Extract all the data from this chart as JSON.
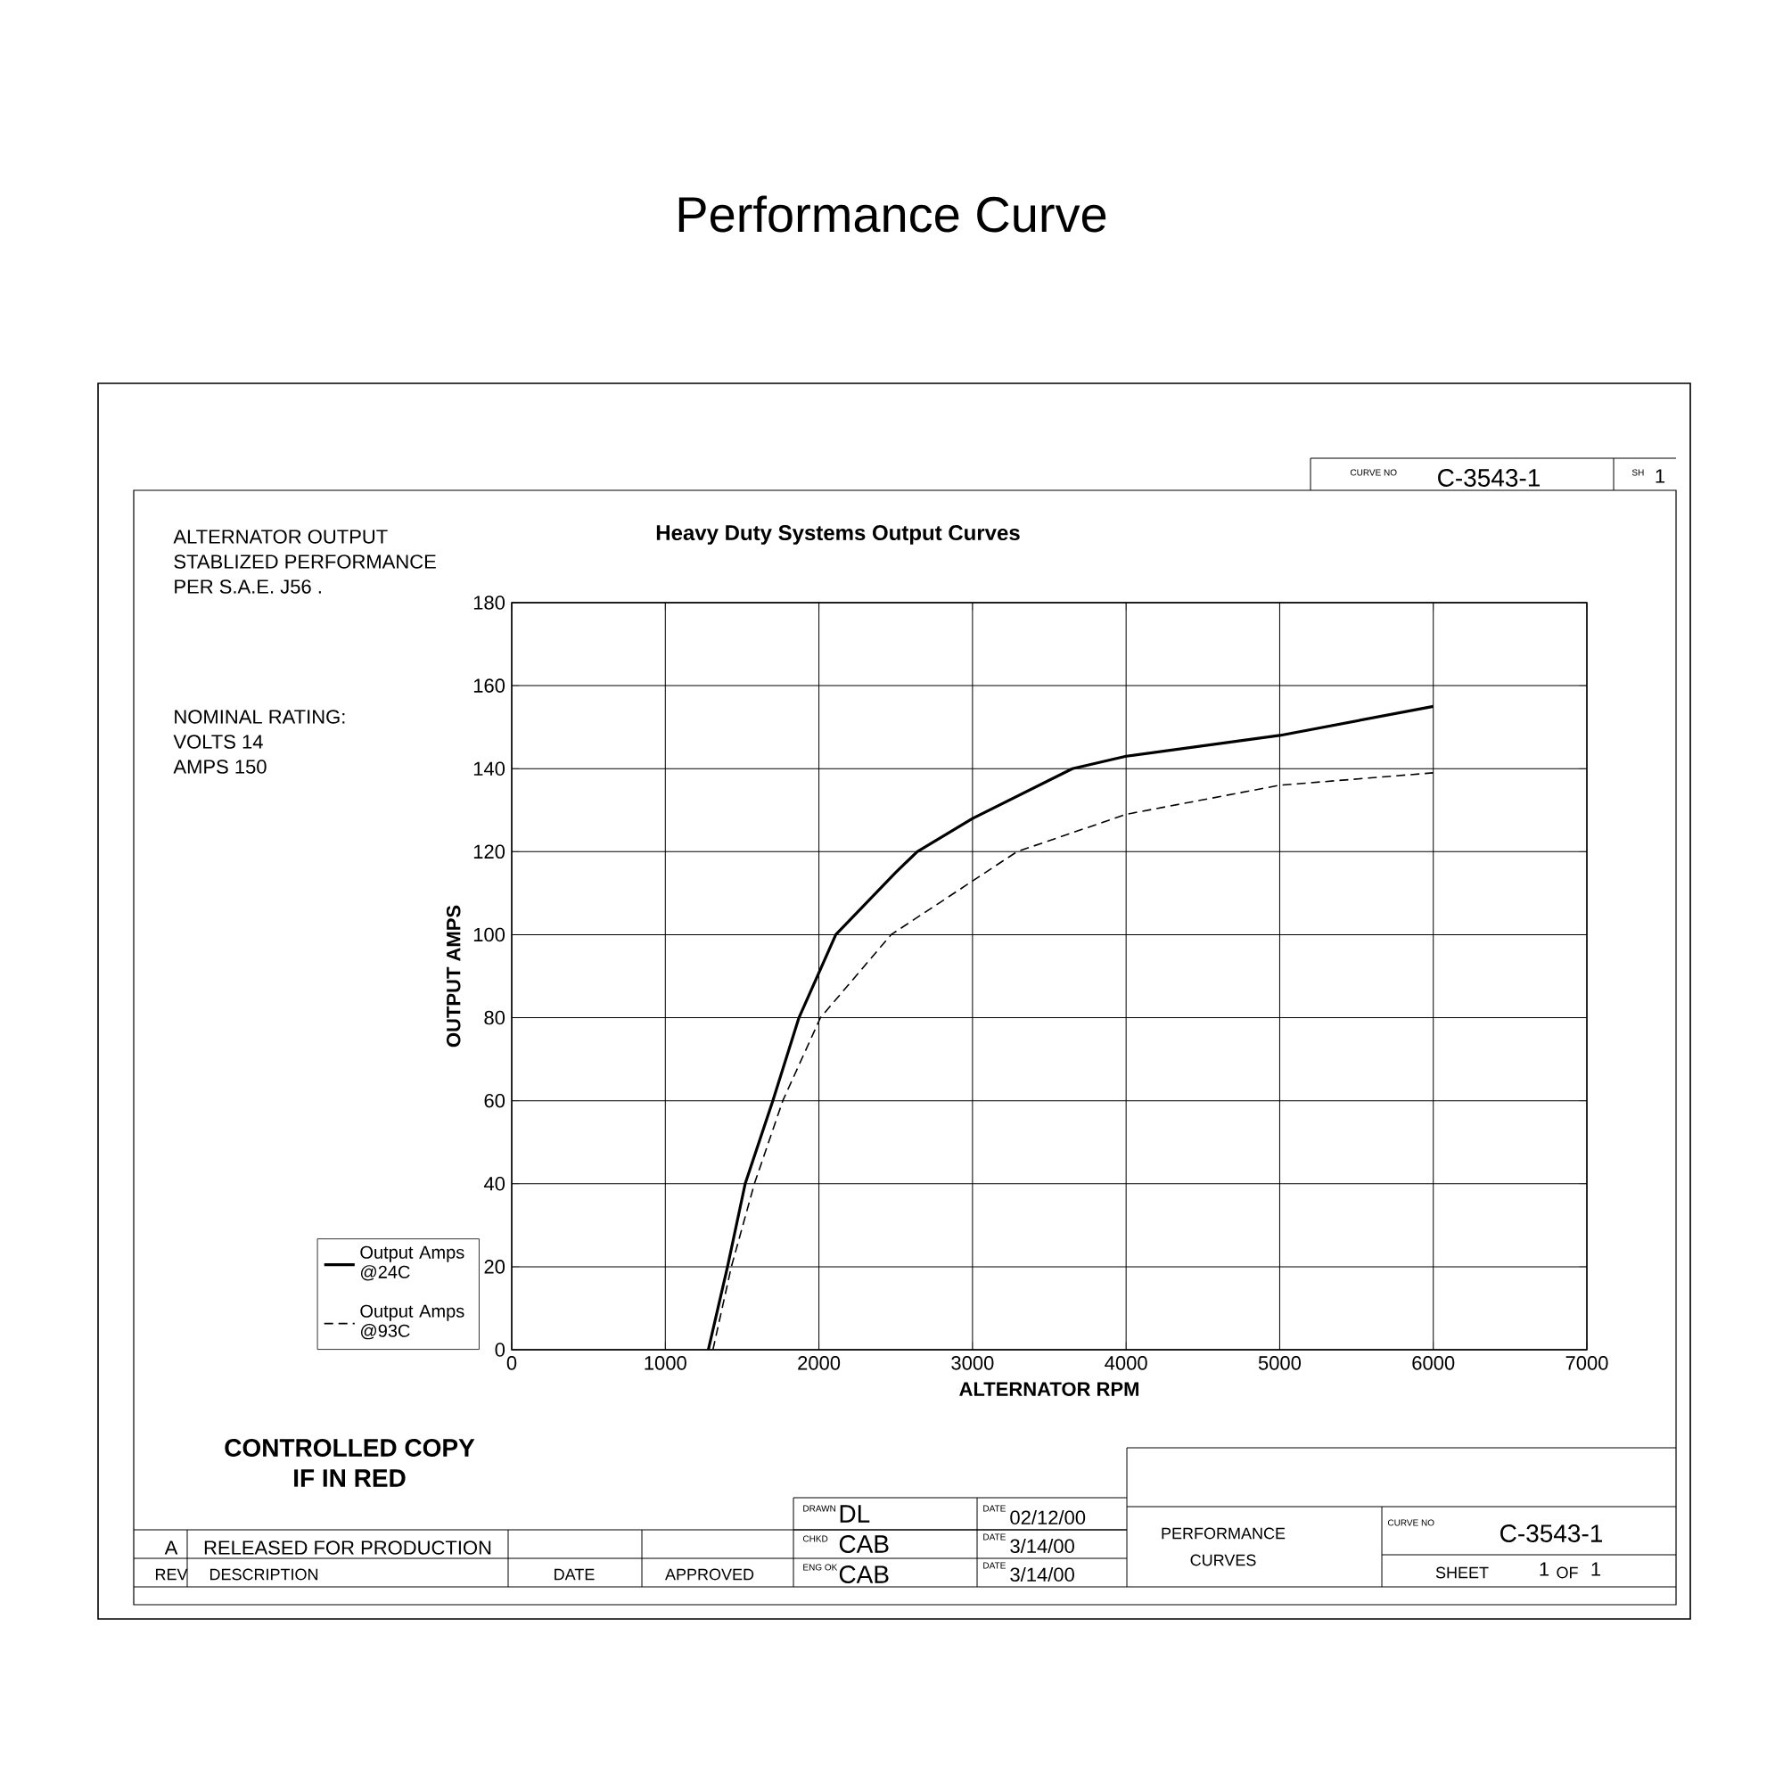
{
  "chart_data": {
    "type": "line",
    "title": "Performance Curve",
    "subtitle": "Heavy Duty Systems Output Curves",
    "xlabel": "ALTERNATOR RPM",
    "ylabel": "OUTPUT AMPS",
    "xlim": [
      0,
      7000
    ],
    "ylim": [
      0,
      180
    ],
    "xticks": [
      0,
      1000,
      2000,
      3000,
      4000,
      5000,
      6000,
      7000
    ],
    "yticks": [
      0,
      20,
      40,
      60,
      80,
      100,
      120,
      140,
      160,
      180
    ],
    "grid": true,
    "legend": "bottom left",
    "marker": "none",
    "series": [
      {
        "name": "Output Amps @24C",
        "color": "#000000",
        "line_style": "solid",
        "x": [
          1280,
          1405,
          1520,
          1700,
          1870,
          2110,
          2500,
          2640,
          3000,
          3650,
          4000,
          5000,
          6000
        ],
        "values": [
          0,
          20,
          40,
          60,
          80,
          100,
          115,
          120,
          128,
          140,
          143,
          148,
          155
        ]
      },
      {
        "name": "Output Amps @93C",
        "color": "#000000",
        "line_style": "dashed",
        "x": [
          1310,
          1430,
          1580,
          1765,
          2010,
          2470,
          3290,
          4000,
          5000,
          6000
        ],
        "values": [
          0,
          20,
          40,
          60,
          80,
          100,
          120,
          129,
          136,
          139
        ]
      }
    ],
    "annotations": [
      "ALTERNATOR OUTPUT",
      "STABLIZED PERFORMANCE",
      "PER S.A.E. J56 .",
      "NOMINAL RATING:",
      "VOLTS 14",
      "AMPS 150",
      "CONTROLLED COPY",
      "IF IN RED",
      "CURVE NO",
      "C-3543-1",
      "SH",
      "1",
      "A",
      "RELEASED FOR PRODUCTION",
      "REV",
      "DESCRIPTION",
      "DATE",
      "APPROVED",
      "DRAWN",
      "DL",
      "DATE",
      "02/12/00",
      "CHKD",
      "CAB",
      "DATE",
      "3/14/00",
      "ENG OK",
      "CAB",
      "DATE",
      "3/14/00",
      "PERFORMANCE",
      "CURVES",
      "CURVE NO",
      "C-3543-1",
      "SHEET",
      "1",
      "OF",
      "1"
    ]
  }
}
